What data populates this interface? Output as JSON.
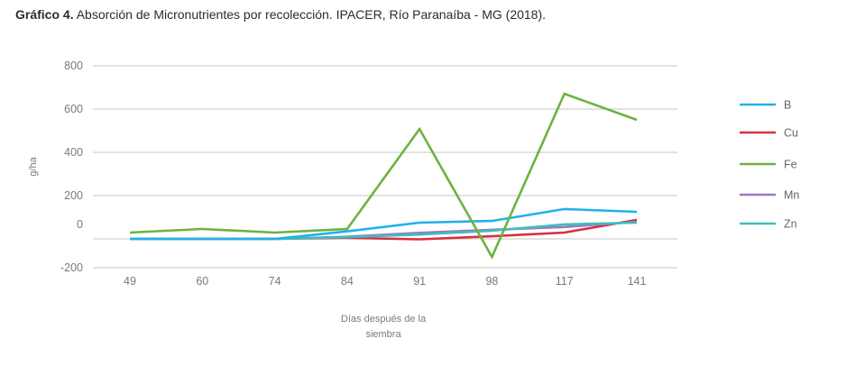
{
  "caption": {
    "bold": "Gráfico 4.",
    "text": " Absorción de Micronutrientes por recolección. IPACER, Río Paranaíba - MG (2018)."
  },
  "chart_data": {
    "type": "line",
    "title": "Gráfico 4. Absorción de Micronutrientes por recolección. IPACER, Río Paranaíba - MG (2018).",
    "xlabel_lines": [
      "Días después de la",
      "siembra"
    ],
    "ylabel": "g/ha",
    "categories": [
      "49",
      "60",
      "74",
      "84",
      "91",
      "98",
      "117",
      "141"
    ],
    "y_ticks": [
      "800",
      "600",
      "400",
      "200",
      "0",
      "-200"
    ],
    "y_tick_values": [
      800,
      600,
      400,
      200,
      0,
      -200
    ],
    "ylim": [
      -200,
      800
    ],
    "grid": true,
    "legend_position": "right",
    "series": [
      {
        "name": "B",
        "color": "#1fb1ec",
        "values": [
          0,
          0,
          0,
          35,
          75,
          83,
          138,
          125
        ]
      },
      {
        "name": "Cu",
        "color": "#d9303e",
        "values": [
          0,
          0,
          0,
          5,
          -3,
          12,
          29,
          88
        ]
      },
      {
        "name": "Fe",
        "color": "#6db33f",
        "values": [
          29,
          46,
          29,
          46,
          508,
          -125,
          671,
          550
        ]
      },
      {
        "name": "Mn",
        "color": "#9e78c0",
        "values": [
          0,
          0,
          0,
          10,
          28,
          42,
          55,
          79
        ]
      },
      {
        "name": "Zn",
        "color": "#3dbfbf",
        "values": [
          0,
          0,
          0,
          8,
          20,
          38,
          67,
          75
        ]
      }
    ]
  }
}
